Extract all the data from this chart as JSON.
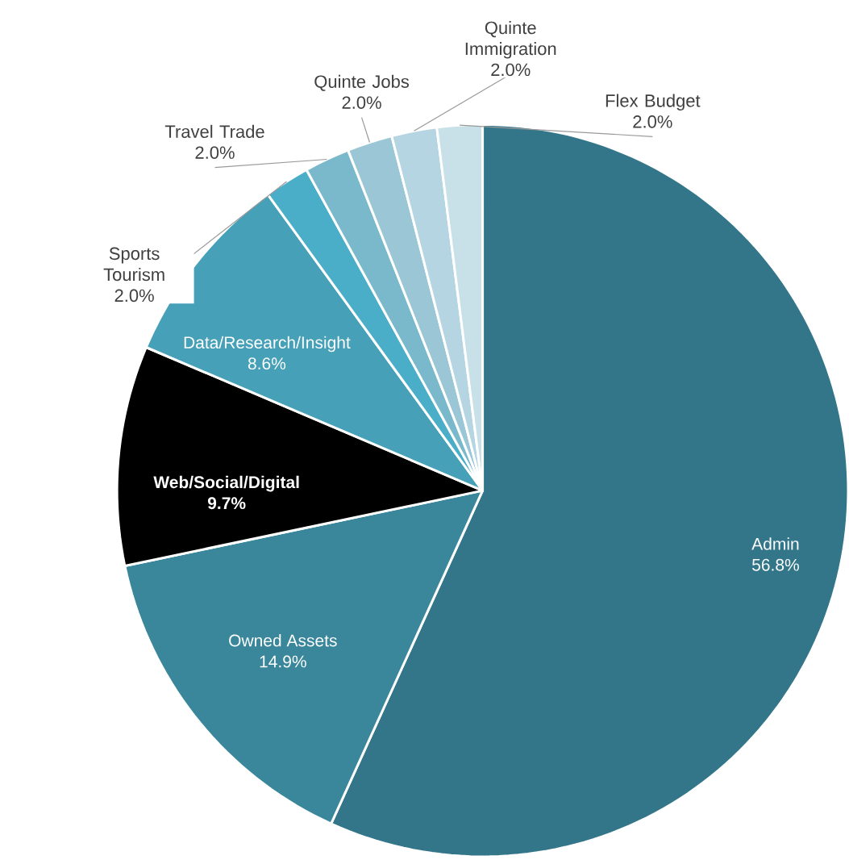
{
  "chart_data": {
    "type": "pie",
    "categories": [
      "Admin",
      "Owned Assets",
      "Web/Social/Digital",
      "Data/Research/Insight",
      "Sports Tourism",
      "Travel Trade",
      "Quinte Jobs",
      "Quinte Immigration",
      "Flex Budget"
    ],
    "values": [
      56.8,
      14.9,
      9.7,
      8.6,
      2.0,
      2.0,
      2.0,
      2.0,
      2.0
    ],
    "value_labels": [
      "56.8%",
      "14.9%",
      "9.7%",
      "8.6%",
      "2.0%",
      "2.0%",
      "2.0%",
      "2.0%",
      "2.0%"
    ],
    "colors": [
      "#33768a",
      "#3a879b",
      "#000000",
      "#45a0b8",
      "#4aaec8",
      "#7ab8cc",
      "#9ac6d6",
      "#b4d5e1",
      "#c8e0e8"
    ]
  }
}
